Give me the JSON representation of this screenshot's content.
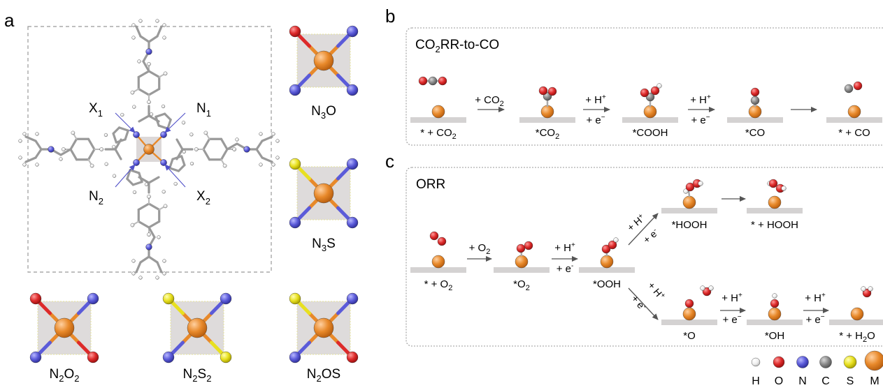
{
  "panel_labels": {
    "a": "a",
    "b": "b",
    "c": "c"
  },
  "structure_labels": {
    "X1": [
      "X",
      "1"
    ],
    "N1": [
      "N",
      "1"
    ],
    "N2": [
      "N",
      "2"
    ],
    "X2": [
      "X",
      "2"
    ]
  },
  "motifs": {
    "n3o": [
      "N",
      "3",
      "O",
      ""
    ],
    "n3s": [
      "N",
      "3",
      "S",
      ""
    ],
    "n2o2": [
      "N",
      "2",
      "O",
      "2"
    ],
    "n2s2": [
      "N",
      "2",
      "S",
      "2"
    ],
    "n2os": [
      "N",
      "2",
      "OS",
      ""
    ]
  },
  "co2rr": {
    "title": [
      "CO",
      "2",
      "RR-to-CO"
    ],
    "states": [
      [
        "* + CO",
        "2"
      ],
      [
        "*CO",
        "2"
      ],
      [
        "*COOH",
        ""
      ],
      [
        "*CO",
        ""
      ],
      [
        "* + CO",
        ""
      ]
    ],
    "steps": {
      "s1": [
        "+ CO",
        "2"
      ],
      "s2_top": [
        "+ H",
        "+"
      ],
      "s2_bot": [
        "+ e",
        "−"
      ],
      "s3_top": [
        "+ H",
        "+"
      ],
      "s3_bot": [
        "+ e",
        "−"
      ]
    }
  },
  "orr": {
    "title": "ORR",
    "states": [
      [
        "* + O",
        "2"
      ],
      [
        "*O",
        "2"
      ],
      [
        "*OOH",
        ""
      ],
      [
        "*HOOH",
        ""
      ],
      [
        "* + HOOH",
        ""
      ],
      [
        "*O",
        ""
      ],
      [
        "*OH",
        ""
      ],
      [
        "* + H",
        "2",
        "O"
      ]
    ],
    "steps": {
      "s1": [
        "+ O",
        "2"
      ],
      "s2_top": [
        "+ H",
        "+"
      ],
      "s2_bot": [
        "+ e",
        "-"
      ],
      "up_top": [
        "+ H",
        "+"
      ],
      "up_bot": [
        "+ e",
        "-"
      ],
      "dn_top": [
        "+ H",
        "+"
      ],
      "dn_bot": [
        "+ e",
        "-"
      ],
      "s5_top": [
        "+ H",
        "+"
      ],
      "s5_bot": [
        "+ e",
        "−"
      ],
      "s6_top": [
        "+ H",
        "+"
      ],
      "s6_bot": [
        "+ e",
        "−"
      ]
    }
  },
  "legend": [
    "H",
    "O",
    "N",
    "C",
    "S",
    "M"
  ],
  "colors": {
    "metal": "#e8892a",
    "oxygen": "#dd2a2a",
    "nitrogen": "#5b5bd9",
    "carbon": "#8a8a8a",
    "sulfur": "#e8e020",
    "hydrogen": "#f2f2f2",
    "bond": "#aaaaaa",
    "surface": "#d4d2d2",
    "arrow": "#555555"
  }
}
